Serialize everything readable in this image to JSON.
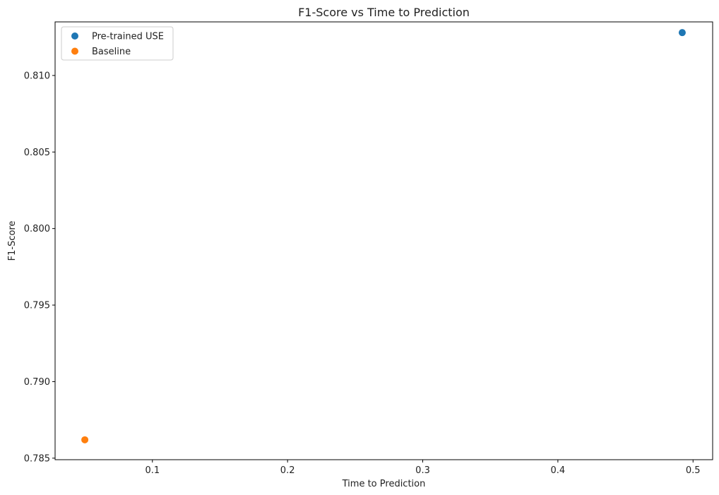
{
  "chart_data": {
    "type": "scatter",
    "title": "F1-Score vs Time to Prediction",
    "xlabel": "Time to Prediction",
    "ylabel": "F1-Score",
    "xlim": [
      0.028,
      0.5145
    ],
    "ylim": [
      0.7849,
      0.8135
    ],
    "xticks": [
      0.1,
      0.2,
      0.3,
      0.4,
      0.5
    ],
    "xtick_labels": [
      "0.1",
      "0.2",
      "0.3",
      "0.4",
      "0.5"
    ],
    "yticks": [
      0.785,
      0.79,
      0.795,
      0.8,
      0.805,
      0.81
    ],
    "ytick_labels": [
      "0.785",
      "0.790",
      "0.795",
      "0.800",
      "0.805",
      "0.810"
    ],
    "grid": false,
    "legend_position": "top-left",
    "series": [
      {
        "name": "Pre-trained USE",
        "color": "#1f77b4",
        "x": [
          0.492
        ],
        "y": [
          0.8128
        ]
      },
      {
        "name": "Baseline",
        "color": "#ff7f0e",
        "x": [
          0.05
        ],
        "y": [
          0.7862
        ]
      }
    ]
  }
}
